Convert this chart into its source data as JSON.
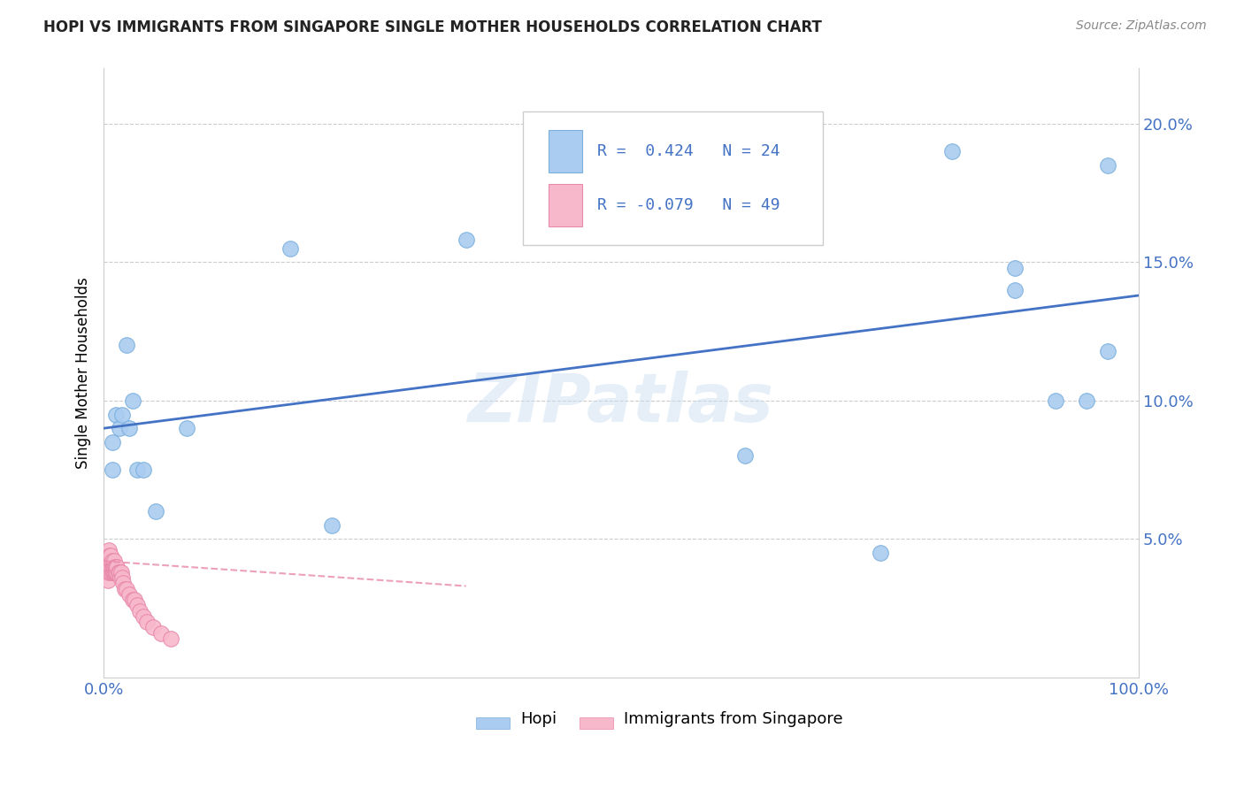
{
  "title": "HOPI VS IMMIGRANTS FROM SINGAPORE SINGLE MOTHER HOUSEHOLDS CORRELATION CHART",
  "source": "Source: ZipAtlas.com",
  "ylabel": "Single Mother Households",
  "watermark": "ZIPatlas",
  "xlim": [
    0.0,
    1.0
  ],
  "ylim": [
    0.0,
    0.22
  ],
  "xtick_vals": [
    0.0,
    0.2,
    0.4,
    0.6,
    0.8,
    1.0
  ],
  "xtick_labels": [
    "0.0%",
    "",
    "",
    "",
    "",
    "100.0%"
  ],
  "ytick_vals": [
    0.0,
    0.05,
    0.1,
    0.15,
    0.2
  ],
  "ytick_labels": [
    "",
    "5.0%",
    "10.0%",
    "15.0%",
    "20.0%"
  ],
  "hopi_color": "#aaccf0",
  "hopi_edge": "#7aaedd",
  "singapore_color": "#f8b8cc",
  "singapore_edge": "#e888aa",
  "hopi_R": 0.424,
  "hopi_N": 24,
  "singapore_R": -0.079,
  "singapore_N": 49,
  "hopi_scatter_x": [
    0.008,
    0.008,
    0.012,
    0.015,
    0.018,
    0.022,
    0.025,
    0.028,
    0.032,
    0.038,
    0.05,
    0.08,
    0.18,
    0.22,
    0.35,
    0.62,
    0.75,
    0.82,
    0.88,
    0.88,
    0.92,
    0.95,
    0.97,
    0.97
  ],
  "hopi_scatter_y": [
    0.085,
    0.075,
    0.095,
    0.09,
    0.095,
    0.12,
    0.09,
    0.1,
    0.075,
    0.075,
    0.06,
    0.09,
    0.155,
    0.055,
    0.158,
    0.08,
    0.045,
    0.19,
    0.148,
    0.14,
    0.1,
    0.1,
    0.118,
    0.185
  ],
  "singapore_scatter_x": [
    0.002,
    0.003,
    0.003,
    0.004,
    0.004,
    0.005,
    0.005,
    0.005,
    0.005,
    0.005,
    0.006,
    0.006,
    0.006,
    0.007,
    0.007,
    0.007,
    0.007,
    0.008,
    0.008,
    0.008,
    0.009,
    0.009,
    0.01,
    0.01,
    0.01,
    0.011,
    0.011,
    0.012,
    0.012,
    0.013,
    0.013,
    0.014,
    0.015,
    0.016,
    0.017,
    0.018,
    0.019,
    0.02,
    0.022,
    0.025,
    0.028,
    0.03,
    0.032,
    0.035,
    0.038,
    0.042,
    0.048,
    0.055,
    0.065
  ],
  "singapore_scatter_y": [
    0.04,
    0.038,
    0.042,
    0.035,
    0.04,
    0.038,
    0.04,
    0.042,
    0.044,
    0.046,
    0.04,
    0.042,
    0.044,
    0.038,
    0.04,
    0.042,
    0.044,
    0.038,
    0.04,
    0.042,
    0.038,
    0.04,
    0.038,
    0.04,
    0.042,
    0.038,
    0.04,
    0.038,
    0.04,
    0.038,
    0.04,
    0.038,
    0.038,
    0.036,
    0.038,
    0.036,
    0.034,
    0.032,
    0.032,
    0.03,
    0.028,
    0.028,
    0.026,
    0.024,
    0.022,
    0.02,
    0.018,
    0.016,
    0.014
  ],
  "hopi_line_x0": 0.0,
  "hopi_line_x1": 1.0,
  "hopi_line_y0": 0.09,
  "hopi_line_y1": 0.138,
  "sing_line_x0": 0.0,
  "sing_line_x1": 0.35,
  "sing_line_y0": 0.042,
  "sing_line_y1": 0.033,
  "hopi_line_color": "#4472c4",
  "sing_line_color": "#e888aa",
  "background_color": "#ffffff",
  "grid_color": "#cccccc",
  "title_color": "#222222",
  "tick_color": "#4472c4",
  "legend_text_color": "#4472c4",
  "figsize": [
    14.06,
    8.92
  ],
  "dpi": 100
}
